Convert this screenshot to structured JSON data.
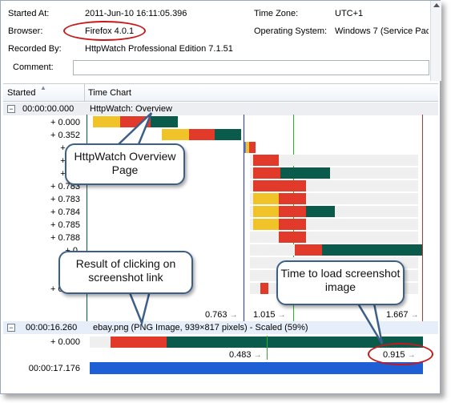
{
  "info": {
    "started_at_label": "Started At:",
    "started_at_value": "2011-Jun-10 16:11:05.396",
    "time_zone_label": "Time Zone:",
    "time_zone_value": "UTC+1",
    "browser_label": "Browser:",
    "browser_value": "Firefox 4.0.1",
    "os_label": "Operating System:",
    "os_value": "Windows 7 (Service Pac",
    "recorded_by_label": "Recorded By:",
    "recorded_by_value": "HttpWatch Professional Edition 7.1.51",
    "comment_label": "Comment:",
    "comment_value": ""
  },
  "grid": {
    "col_started": "Started",
    "col_time_chart": "Time Chart",
    "group1": {
      "expander": "−",
      "time": "00:00:00.000",
      "title": "HttpWatch: Overview"
    },
    "rows1": [
      "+ 0.000",
      "+ 0.352",
      "+ 0.7",
      "+ 0.7",
      "+ 0.7",
      "+ 0.783",
      "+ 0.783",
      "+ 0.784",
      "+ 0.785",
      "+ 0.788",
      "+ 0.",
      "+ 0.",
      "+ 0.",
      "+ 0.845"
    ],
    "summary1": {
      "a": "0.763",
      "b": "1.015",
      "c": "1.667"
    },
    "group2": {
      "expander": "−",
      "time": "00:00:16.260",
      "title": "ebay.png (PNG Image, 939×817 pixels) - Scaled (59%)"
    },
    "rows2": [
      "+ 0.000"
    ],
    "summary2": {
      "a": "0.483",
      "b": "0.915"
    },
    "total_time": "00:00:17.176"
  },
  "colors": {
    "blocked": "#efefef",
    "connect": "#f0c428",
    "send_wait": "#e23a2a",
    "receive": "#0b5b4d",
    "total_bar": "#1f5fd6",
    "callout_border": "#3c5f8a",
    "highlight": "#c81818"
  },
  "callouts": {
    "overview": "HttpWatch Overview Page",
    "click": "Result of clicking on screenshot link",
    "load": "Time to load screenshot image"
  },
  "icons": {
    "sort": "sort-up-icon",
    "expand": "collapse-icon",
    "arrow": "right-arrow-icon"
  }
}
